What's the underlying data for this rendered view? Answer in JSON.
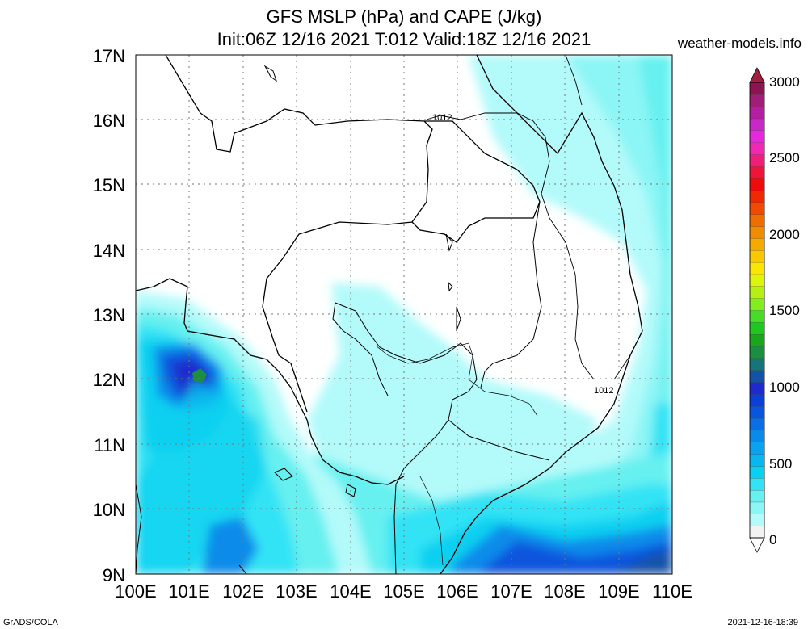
{
  "header": {
    "title_line1": "GFS MSLP (hPa) and CAPE (J/kg)",
    "title_line2": "Init:06Z 12/16 2021 T:012 Valid:18Z 12/16 2021",
    "site": "weather-models.info"
  },
  "footer": {
    "left": "GrADS/COLA",
    "right": "2021-12-16-18:39"
  },
  "map": {
    "lat_labels": [
      "17N",
      "16N",
      "15N",
      "14N",
      "13N",
      "12N",
      "11N",
      "10N",
      "9N"
    ],
    "lon_labels": [
      "100E",
      "101E",
      "102E",
      "103E",
      "104E",
      "105E",
      "106E",
      "107E",
      "108E",
      "109E",
      "110E"
    ],
    "isobar_labels": [
      "1012",
      "1012"
    ]
  },
  "colorbar": {
    "labels": [
      "3000",
      "2500",
      "2000",
      "1500",
      "1000",
      "500",
      "0"
    ],
    "colors": [
      "#f2f2f2",
      "#b3fafa",
      "#8cf5f5",
      "#66f0f0",
      "#33e3f5",
      "#0ad0f0",
      "#06b8ef",
      "#0aa3f0",
      "#0a8bea",
      "#0a6ee6",
      "#0a55dd",
      "#0a3fd8",
      "#1f2acc",
      "#1253a8",
      "#16757a",
      "#1a8f3f",
      "#1aa61a",
      "#1ec81e",
      "#46dc28",
      "#82ee1e",
      "#b4f014",
      "#dcf50a",
      "#fae600",
      "#fac800",
      "#f5aa00",
      "#f08c00",
      "#f06e00",
      "#f04b00",
      "#f02800",
      "#f00a0a",
      "#f0143c",
      "#f01e78",
      "#f028b4",
      "#e628dc",
      "#c828c8",
      "#b41ea0",
      "#a01e78",
      "#8c1450"
    ]
  }
}
